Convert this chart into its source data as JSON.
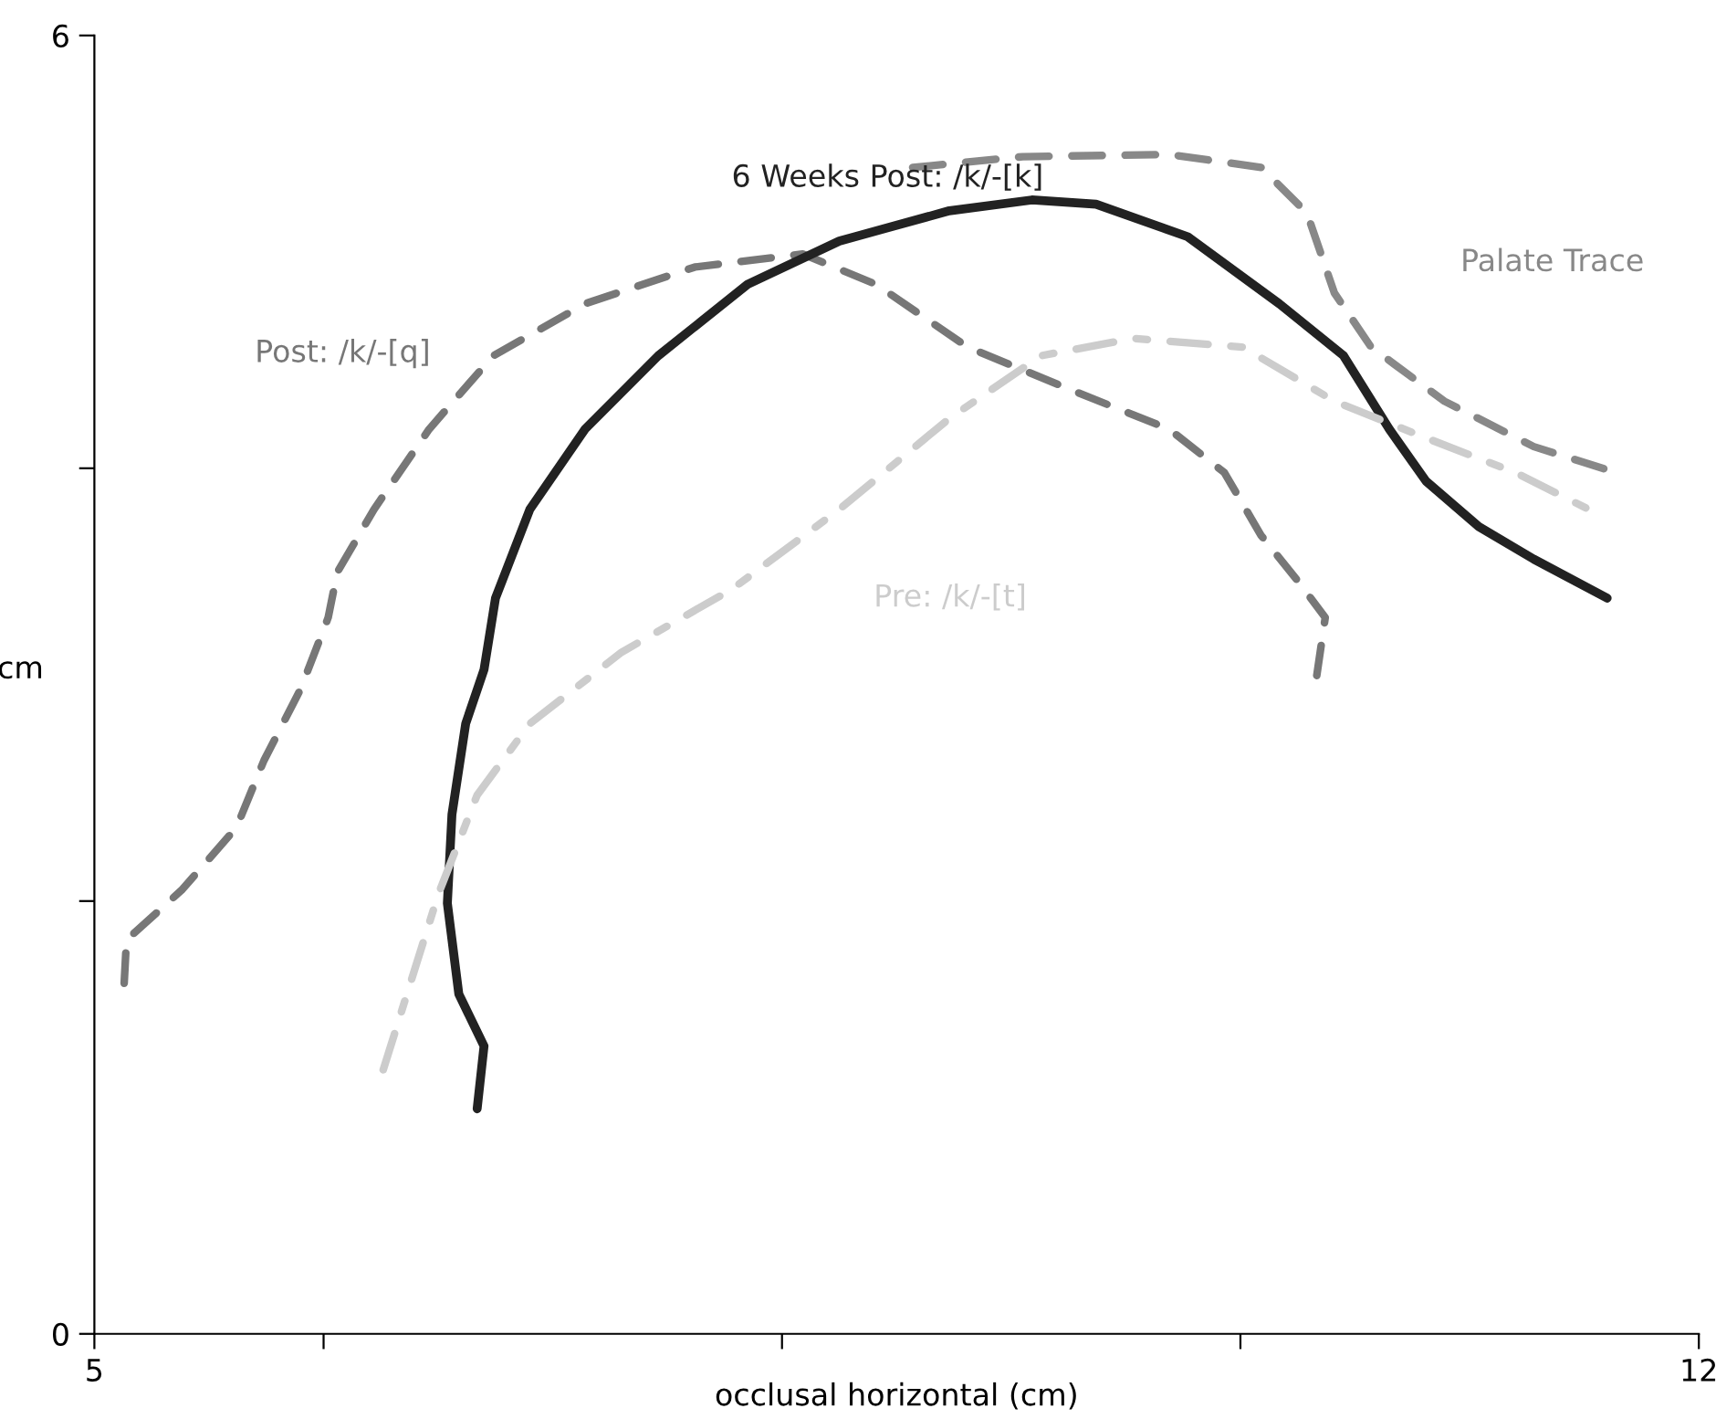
{
  "chart_data": {
    "type": "line",
    "xlabel": "occlusal horizontal (cm)",
    "ylabel": "cm",
    "xlim": [
      5,
      12
    ],
    "ylim": [
      0,
      6
    ],
    "xticks": [
      5,
      {
        "value": 6,
        "label": null
      },
      {
        "value": 8,
        "label": null
      },
      {
        "value": 10,
        "label": null
      },
      12
    ],
    "yticks": [
      0,
      {
        "value": 2,
        "label": null
      },
      {
        "value": 4,
        "label": null
      },
      6
    ],
    "grid": false,
    "legend": false,
    "marker": "none",
    "series": [
      {
        "name": "Palate Trace",
        "color": "#888888",
        "line_style": "dashed",
        "x": [
          8.57,
          9.05,
          9.69,
          10.09,
          10.29,
          10.41,
          10.57,
          10.89,
          11.28,
          11.64
        ],
        "values": [
          5.39,
          5.44,
          5.45,
          5.39,
          5.18,
          4.81,
          4.56,
          4.31,
          4.1,
          3.98
        ]
      },
      {
        "name": "Post: /k/-[q]",
        "color": "#777777",
        "line_style": "dashed",
        "x": [
          5.13,
          5.14,
          5.38,
          5.62,
          5.74,
          5.9,
          6.02,
          6.06,
          6.22,
          6.46,
          6.74,
          7.14,
          7.62,
          8.09,
          8.41,
          8.81,
          9.29,
          9.69,
          9.93,
          10.09,
          10.25,
          10.37,
          10.33
        ],
        "values": [
          1.62,
          1.82,
          2.05,
          2.34,
          2.65,
          2.98,
          3.31,
          3.52,
          3.81,
          4.18,
          4.52,
          4.76,
          4.93,
          4.99,
          4.85,
          4.56,
          4.35,
          4.18,
          3.98,
          3.69,
          3.48,
          3.31,
          3.02
        ]
      },
      {
        "name": "6 Weeks Post: /k/-[k]",
        "color": "#222222",
        "line_style": "solid",
        "x": [
          6.67,
          6.7,
          6.59,
          6.54,
          6.56,
          6.62,
          6.7,
          6.75,
          6.9,
          7.14,
          7.46,
          7.85,
          8.25,
          8.73,
          9.09,
          9.37,
          9.77,
          10.17,
          10.45,
          10.65,
          10.81,
          11.04,
          11.28,
          11.6
        ],
        "values": [
          1.04,
          1.33,
          1.57,
          1.99,
          2.4,
          2.82,
          3.07,
          3.4,
          3.81,
          4.18,
          4.52,
          4.85,
          5.05,
          5.19,
          5.24,
          5.22,
          5.07,
          4.76,
          4.52,
          4.18,
          3.94,
          3.73,
          3.58,
          3.4
        ]
      },
      {
        "name": "Pre: /k/-[t]",
        "color": "#cccccc",
        "line_style": "dashdot",
        "x": [
          6.26,
          6.5,
          6.67,
          6.9,
          7.3,
          7.78,
          8.25,
          8.73,
          9.13,
          9.53,
          10.01,
          10.41,
          10.81,
          11.2,
          11.52
        ],
        "values": [
          1.22,
          2.03,
          2.49,
          2.82,
          3.15,
          3.44,
          3.81,
          4.23,
          4.52,
          4.6,
          4.56,
          4.31,
          4.14,
          3.98,
          3.81
        ]
      }
    ]
  }
}
